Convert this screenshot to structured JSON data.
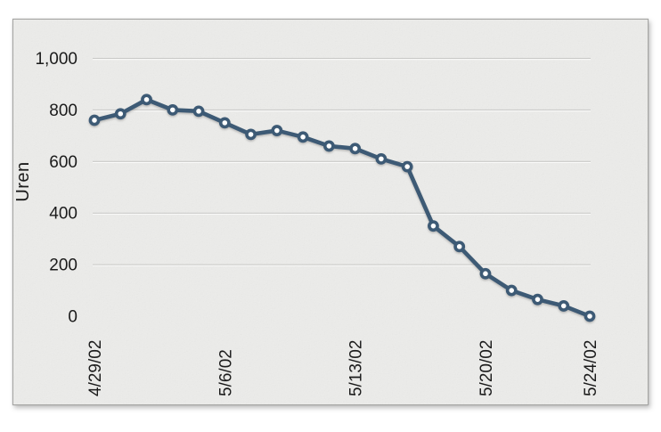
{
  "chart_data": {
    "type": "line",
    "title": "",
    "ylabel": "Uren",
    "xlabel": "",
    "ylim": [
      0,
      1000
    ],
    "grid": true,
    "legend": "none",
    "n_points": 20,
    "y_ticks": [
      {
        "value": 0,
        "label": "0"
      },
      {
        "value": 200,
        "label": "200"
      },
      {
        "value": 400,
        "label": "400"
      },
      {
        "value": 600,
        "label": "600"
      },
      {
        "value": 800,
        "label": "800"
      },
      {
        "value": 1000,
        "label": "1,000"
      }
    ],
    "x_ticks": [
      {
        "index": 0,
        "label": "4/29/02"
      },
      {
        "index": 5,
        "label": "5/6/02"
      },
      {
        "index": 10,
        "label": "5/13/02"
      },
      {
        "index": 15,
        "label": "5/20/02"
      },
      {
        "index": 19,
        "label": "5/24/02"
      }
    ],
    "series": [
      {
        "name": "Uren",
        "values": [
          760,
          785,
          840,
          800,
          795,
          750,
          705,
          720,
          695,
          660,
          650,
          610,
          580,
          350,
          270,
          165,
          100,
          65,
          40,
          0
        ]
      }
    ],
    "colors": {
      "line": "#3c5a74",
      "marker_fill": "#ffffff",
      "grid": "#c8c8c6",
      "grid_emboss": "#fbfbfa",
      "text": "#1b1b1b",
      "panel_bg": "#ececea",
      "panel_border": "#a5a5a3"
    }
  }
}
